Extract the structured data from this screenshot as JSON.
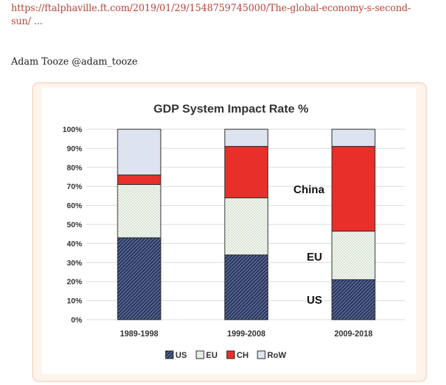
{
  "post": {
    "link_text": "https://ftalphaville.ft.com/2019/01/29/1548759745000/The-global-economy-s-second-sun/ ...",
    "author": "Adam Tooze @adam_tooze"
  },
  "colors": {
    "link": "#b5443a",
    "us": "#3a4a7a",
    "eu": "#dfeadd",
    "ch": "#e8302a",
    "row": "#dde3ef",
    "card_border": "#f0dcc8"
  },
  "chart_data": {
    "type": "bar",
    "stacked": true,
    "title": "GDP System Impact Rate %",
    "categories": [
      "1989-1998",
      "1999-2008",
      "2009-2018"
    ],
    "series": [
      {
        "name": "US",
        "values": [
          43,
          34,
          21
        ]
      },
      {
        "name": "EU",
        "values": [
          28,
          30,
          25.5
        ]
      },
      {
        "name": "CH",
        "values": [
          5,
          27,
          44.5
        ]
      },
      {
        "name": "RoW",
        "values": [
          24,
          9,
          9
        ]
      }
    ],
    "y_ticks": [
      "0%",
      "10%",
      "20%",
      "30%",
      "40%",
      "50%",
      "60%",
      "70%",
      "80%",
      "90%",
      "100%"
    ],
    "ylim": [
      0,
      100
    ],
    "grid": true,
    "legend_position": "bottom",
    "annotations": [
      "China",
      "EU",
      "US"
    ]
  }
}
